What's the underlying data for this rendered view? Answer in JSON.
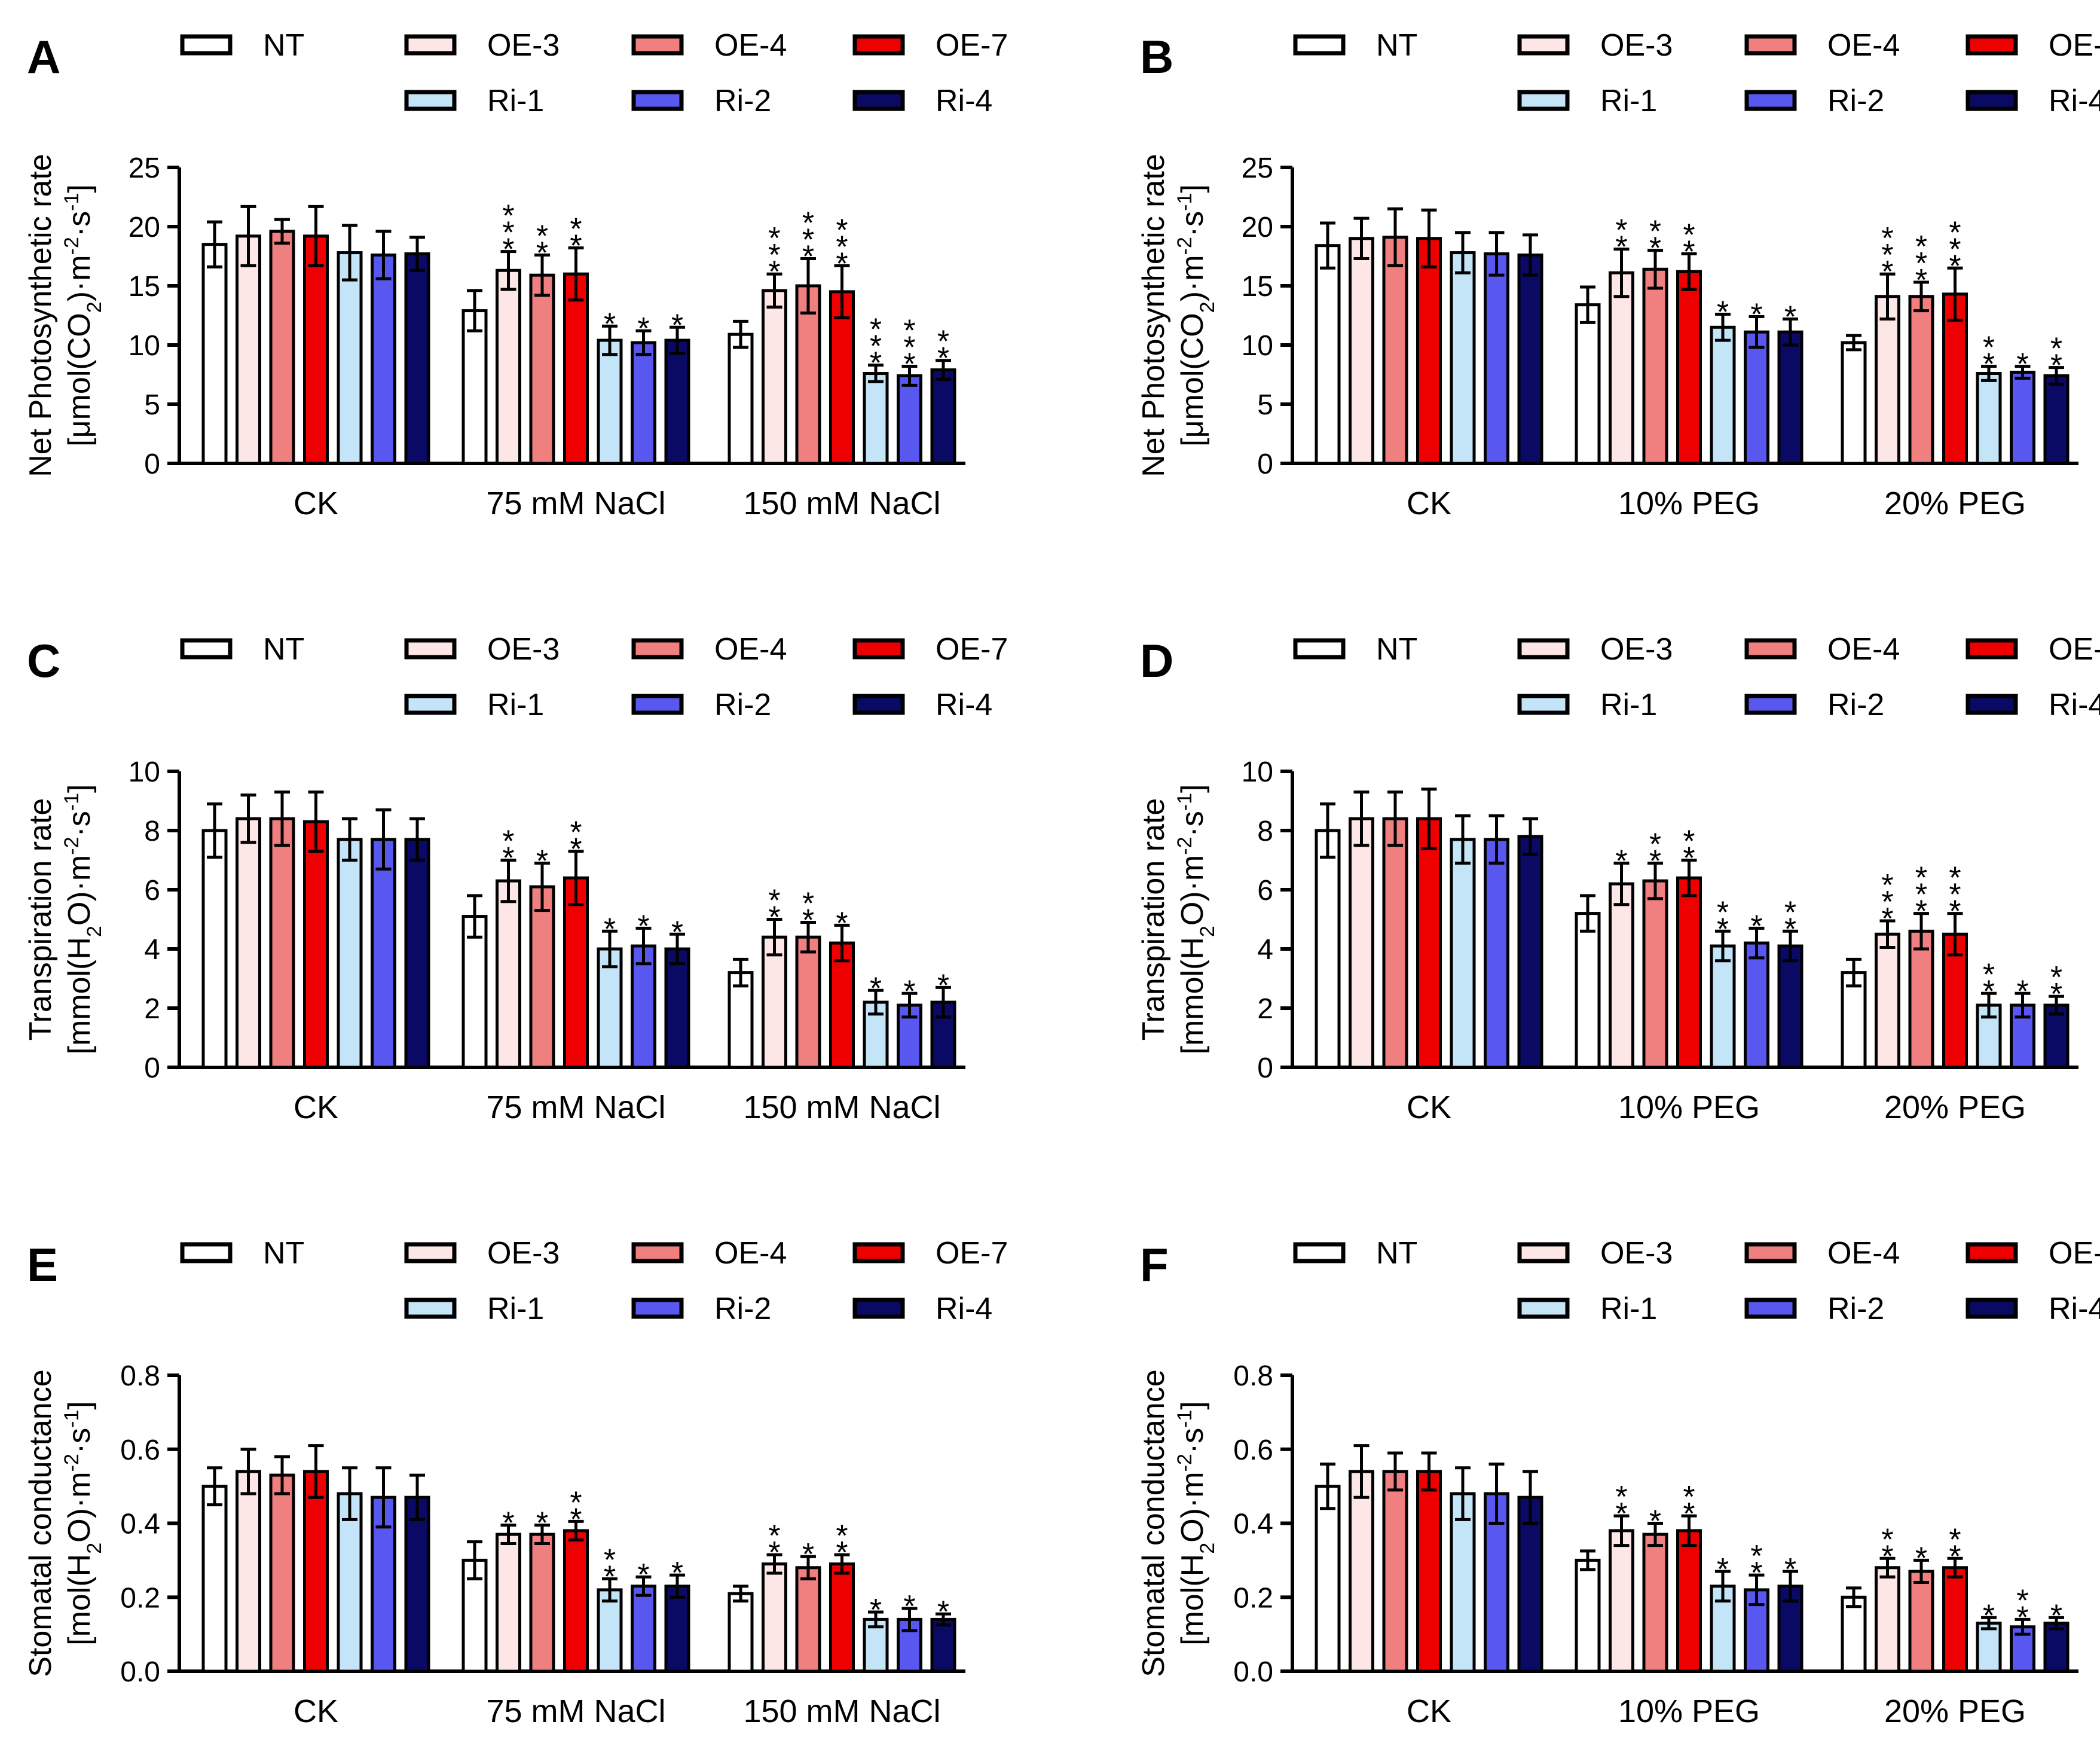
{
  "legend": {
    "entries": [
      {
        "name": "NT",
        "color": "#ffffff"
      },
      {
        "name": "OE-3",
        "color": "#fde6e6"
      },
      {
        "name": "OE-4",
        "color": "#f08080"
      },
      {
        "name": "OE-7",
        "color": "#ee0000"
      },
      {
        "name": "Ri-1",
        "color": "#c4e4f8"
      },
      {
        "name": "Ri-2",
        "color": "#5858f0"
      },
      {
        "name": "Ri-4",
        "color": "#0a0a64"
      }
    ]
  },
  "chart_data": [
    {
      "panel": "A",
      "type": "bar",
      "ylabel_line1": "Net Photosynthetic rate",
      "ylabel_line2_parts": [
        "[μmol(CO",
        "2",
        ")·m",
        "-2",
        "·s",
        "-1",
        "]"
      ],
      "ylim": [
        0,
        25
      ],
      "yticks": [
        "0",
        "5",
        "10",
        "15",
        "20",
        "25"
      ],
      "categories": [
        "CK",
        "75 mM NaCl",
        "150 mM NaCl"
      ],
      "series": [
        {
          "name": "NT",
          "values": [
            18.5,
            12.9,
            10.9
          ],
          "errors": [
            1.9,
            1.7,
            1.1
          ],
          "sig": [
            "",
            "",
            ""
          ]
        },
        {
          "name": "OE-3",
          "values": [
            19.2,
            16.3,
            14.6
          ],
          "errors": [
            2.5,
            1.6,
            1.4
          ],
          "sig": [
            "",
            "***",
            "***"
          ]
        },
        {
          "name": "OE-4",
          "values": [
            19.6,
            15.9,
            15.0
          ],
          "errors": [
            1.0,
            1.7,
            2.3
          ],
          "sig": [
            "",
            "**",
            "***"
          ]
        },
        {
          "name": "OE-7",
          "values": [
            19.2,
            16.0,
            14.5
          ],
          "errors": [
            2.5,
            2.2,
            2.2
          ],
          "sig": [
            "",
            "**",
            "***"
          ]
        },
        {
          "name": "Ri-1",
          "values": [
            17.8,
            10.4,
            7.6
          ],
          "errors": [
            2.3,
            1.2,
            0.7
          ],
          "sig": [
            "",
            "*",
            "***"
          ]
        },
        {
          "name": "Ri-2",
          "values": [
            17.6,
            10.2,
            7.4
          ],
          "errors": [
            2.0,
            1.0,
            0.8
          ],
          "sig": [
            "",
            "*",
            "***"
          ]
        },
        {
          "name": "Ri-4",
          "values": [
            17.7,
            10.4,
            7.9
          ],
          "errors": [
            1.4,
            1.1,
            0.8
          ],
          "sig": [
            "",
            "*",
            "**"
          ]
        }
      ]
    },
    {
      "panel": "B",
      "type": "bar",
      "ylabel_line1": "Net Photosynthetic rate",
      "ylabel_line2_parts": [
        "[μmol(CO",
        "2",
        ")·m",
        "-2",
        "·s",
        "-1",
        "]"
      ],
      "ylim": [
        0,
        25
      ],
      "yticks": [
        "0",
        "5",
        "10",
        "15",
        "20",
        "25"
      ],
      "categories": [
        "CK",
        "10% PEG",
        "20% PEG"
      ],
      "series": [
        {
          "name": "NT",
          "values": [
            18.4,
            13.4,
            10.2
          ],
          "errors": [
            1.9,
            1.5,
            0.6
          ],
          "sig": [
            "",
            "",
            ""
          ]
        },
        {
          "name": "OE-3",
          "values": [
            19.0,
            16.1,
            14.1
          ],
          "errors": [
            1.7,
            2.0,
            1.9
          ],
          "sig": [
            "",
            "**",
            "***"
          ]
        },
        {
          "name": "OE-4",
          "values": [
            19.1,
            16.4,
            14.1
          ],
          "errors": [
            2.4,
            1.6,
            1.2
          ],
          "sig": [
            "",
            "**",
            "***"
          ]
        },
        {
          "name": "OE-7",
          "values": [
            19.0,
            16.2,
            14.3
          ],
          "errors": [
            2.4,
            1.5,
            2.2
          ],
          "sig": [
            "",
            "**",
            "***"
          ]
        },
        {
          "name": "Ri-1",
          "values": [
            17.8,
            11.5,
            7.6
          ],
          "errors": [
            1.7,
            1.1,
            0.6
          ],
          "sig": [
            "",
            "*",
            "**"
          ]
        },
        {
          "name": "Ri-2",
          "values": [
            17.7,
            11.1,
            7.7
          ],
          "errors": [
            1.8,
            1.3,
            0.5
          ],
          "sig": [
            "",
            "*",
            "*"
          ]
        },
        {
          "name": "Ri-4",
          "values": [
            17.6,
            11.1,
            7.4
          ],
          "errors": [
            1.7,
            1.1,
            0.7
          ],
          "sig": [
            "",
            "*",
            "**"
          ]
        }
      ]
    },
    {
      "panel": "C",
      "type": "bar",
      "ylabel_line1": "Transpiration rate",
      "ylabel_line2_parts": [
        "[mmol(H",
        "2",
        "O)·m",
        "-2",
        "·s",
        "-1",
        "]"
      ],
      "ylim": [
        0,
        10
      ],
      "yticks": [
        "0",
        "2",
        "4",
        "6",
        "8",
        "10"
      ],
      "categories": [
        "CK",
        "75 mM NaCl",
        "150 mM NaCl"
      ],
      "series": [
        {
          "name": "NT",
          "values": [
            8.0,
            5.1,
            3.2
          ],
          "errors": [
            0.9,
            0.7,
            0.45
          ],
          "sig": [
            "",
            "",
            ""
          ]
        },
        {
          "name": "OE-3",
          "values": [
            8.4,
            6.3,
            4.4
          ],
          "errors": [
            0.8,
            0.7,
            0.6
          ],
          "sig": [
            "",
            "**",
            "**"
          ]
        },
        {
          "name": "OE-4",
          "values": [
            8.4,
            6.1,
            4.4
          ],
          "errors": [
            0.9,
            0.8,
            0.5
          ],
          "sig": [
            "",
            "*",
            "**"
          ]
        },
        {
          "name": "OE-7",
          "values": [
            8.3,
            6.4,
            4.2
          ],
          "errors": [
            1.0,
            0.9,
            0.6
          ],
          "sig": [
            "",
            "**",
            "*"
          ]
        },
        {
          "name": "Ri-1",
          "values": [
            7.7,
            4.0,
            2.2
          ],
          "errors": [
            0.7,
            0.6,
            0.4
          ],
          "sig": [
            "",
            "*",
            "*"
          ]
        },
        {
          "name": "Ri-2",
          "values": [
            7.7,
            4.1,
            2.1
          ],
          "errors": [
            1.0,
            0.6,
            0.4
          ],
          "sig": [
            "",
            "*",
            "*"
          ]
        },
        {
          "name": "Ri-4",
          "values": [
            7.7,
            4.0,
            2.2
          ],
          "errors": [
            0.7,
            0.5,
            0.5
          ],
          "sig": [
            "",
            "*",
            "*"
          ]
        }
      ]
    },
    {
      "panel": "D",
      "type": "bar",
      "ylabel_line1": "Transpiration rate",
      "ylabel_line2_parts": [
        "[mmol(H",
        "2",
        "O)·m",
        "-2",
        "·s",
        "-1",
        "]"
      ],
      "ylim": [
        0,
        10
      ],
      "yticks": [
        "0",
        "2",
        "4",
        "6",
        "8",
        "10"
      ],
      "categories": [
        "CK",
        "10% PEG",
        "20% PEG"
      ],
      "series": [
        {
          "name": "NT",
          "values": [
            8.0,
            5.2,
            3.2
          ],
          "errors": [
            0.9,
            0.6,
            0.45
          ],
          "sig": [
            "",
            "",
            ""
          ]
        },
        {
          "name": "OE-3",
          "values": [
            8.4,
            6.2,
            4.5
          ],
          "errors": [
            0.9,
            0.7,
            0.45
          ],
          "sig": [
            "",
            "*",
            "***"
          ]
        },
        {
          "name": "OE-4",
          "values": [
            8.4,
            6.3,
            4.6
          ],
          "errors": [
            0.9,
            0.6,
            0.6
          ],
          "sig": [
            "",
            "**",
            "***"
          ]
        },
        {
          "name": "OE-7",
          "values": [
            8.4,
            6.4,
            4.5
          ],
          "errors": [
            1.0,
            0.6,
            0.7
          ],
          "sig": [
            "",
            "**",
            "***"
          ]
        },
        {
          "name": "Ri-1",
          "values": [
            7.7,
            4.1,
            2.1
          ],
          "errors": [
            0.8,
            0.5,
            0.4
          ],
          "sig": [
            "",
            "**",
            "**"
          ]
        },
        {
          "name": "Ri-2",
          "values": [
            7.7,
            4.2,
            2.1
          ],
          "errors": [
            0.8,
            0.5,
            0.4
          ],
          "sig": [
            "",
            "*",
            "*"
          ]
        },
        {
          "name": "Ri-4",
          "values": [
            7.8,
            4.1,
            2.1
          ],
          "errors": [
            0.6,
            0.5,
            0.3
          ],
          "sig": [
            "",
            "**",
            "**"
          ]
        }
      ]
    },
    {
      "panel": "E",
      "type": "bar",
      "ylabel_line1": "Stomatal conductance",
      "ylabel_line2_parts": [
        "[mol(H",
        "2",
        "O)·m",
        "-2",
        "·s",
        "-1",
        "]"
      ],
      "ylim": [
        0,
        0.8
      ],
      "yticks": [
        "0.0",
        "0.2",
        "0.4",
        "0.6",
        "0.8"
      ],
      "categories": [
        "CK",
        "75 mM NaCl",
        "150 mM NaCl"
      ],
      "series": [
        {
          "name": "NT",
          "values": [
            0.5,
            0.3,
            0.21
          ],
          "errors": [
            0.05,
            0.05,
            0.02
          ],
          "sig": [
            "",
            "",
            ""
          ]
        },
        {
          "name": "OE-3",
          "values": [
            0.54,
            0.37,
            0.29
          ],
          "errors": [
            0.06,
            0.025,
            0.025
          ],
          "sig": [
            "",
            "*",
            "**"
          ]
        },
        {
          "name": "OE-4",
          "values": [
            0.53,
            0.37,
            0.28
          ],
          "errors": [
            0.05,
            0.025,
            0.03
          ],
          "sig": [
            "",
            "*",
            "*"
          ]
        },
        {
          "name": "OE-7",
          "values": [
            0.54,
            0.38,
            0.29
          ],
          "errors": [
            0.07,
            0.025,
            0.025
          ],
          "sig": [
            "",
            "**",
            "**"
          ]
        },
        {
          "name": "Ri-1",
          "values": [
            0.48,
            0.22,
            0.14
          ],
          "errors": [
            0.07,
            0.03,
            0.02
          ],
          "sig": [
            "",
            "**",
            "*"
          ]
        },
        {
          "name": "Ri-2",
          "values": [
            0.47,
            0.23,
            0.14
          ],
          "errors": [
            0.08,
            0.025,
            0.03
          ],
          "sig": [
            "",
            "*",
            "*"
          ]
        },
        {
          "name": "Ri-4",
          "values": [
            0.47,
            0.23,
            0.14
          ],
          "errors": [
            0.06,
            0.03,
            0.015
          ],
          "sig": [
            "",
            "*",
            "*"
          ]
        }
      ]
    },
    {
      "panel": "F",
      "type": "bar",
      "ylabel_line1": "Stomatal conductance",
      "ylabel_line2_parts": [
        "[mol(H",
        "2",
        "O)·m",
        "-2",
        "·s",
        "-1",
        "]"
      ],
      "ylim": [
        0,
        0.8
      ],
      "yticks": [
        "0.0",
        "0.2",
        "0.4",
        "0.6",
        "0.8"
      ],
      "categories": [
        "CK",
        "10% PEG",
        "20% PEG"
      ],
      "series": [
        {
          "name": "NT",
          "values": [
            0.5,
            0.3,
            0.2
          ],
          "errors": [
            0.06,
            0.025,
            0.025
          ],
          "sig": [
            "",
            "",
            ""
          ]
        },
        {
          "name": "OE-3",
          "values": [
            0.54,
            0.38,
            0.28
          ],
          "errors": [
            0.07,
            0.04,
            0.025
          ],
          "sig": [
            "",
            "**",
            "**"
          ]
        },
        {
          "name": "OE-4",
          "values": [
            0.54,
            0.37,
            0.27
          ],
          "errors": [
            0.05,
            0.03,
            0.03
          ],
          "sig": [
            "",
            "*",
            "*"
          ]
        },
        {
          "name": "OE-7",
          "values": [
            0.54,
            0.38,
            0.28
          ],
          "errors": [
            0.05,
            0.04,
            0.025
          ],
          "sig": [
            "",
            "**",
            "**"
          ]
        },
        {
          "name": "Ri-1",
          "values": [
            0.48,
            0.23,
            0.13
          ],
          "errors": [
            0.07,
            0.04,
            0.015
          ],
          "sig": [
            "",
            "*",
            "*"
          ]
        },
        {
          "name": "Ri-2",
          "values": [
            0.48,
            0.22,
            0.12
          ],
          "errors": [
            0.08,
            0.04,
            0.02
          ],
          "sig": [
            "",
            "**",
            "**"
          ]
        },
        {
          "name": "Ri-4",
          "values": [
            0.47,
            0.23,
            0.13
          ],
          "errors": [
            0.07,
            0.04,
            0.015
          ],
          "sig": [
            "",
            "*",
            "*"
          ]
        }
      ]
    }
  ]
}
